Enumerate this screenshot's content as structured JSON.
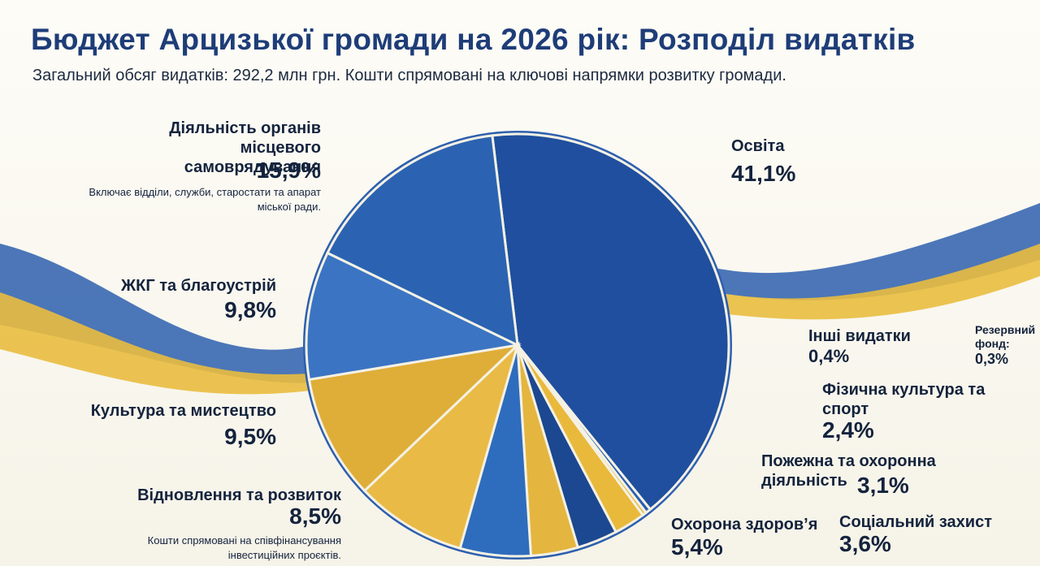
{
  "chart_data": {
    "type": "pie",
    "title": "Бюджет Арцизької громади на 2026 рік: Розподіл видатків",
    "subtitle": "Загальний обсяг видатків: 292,2 млн грн. Кошти спрямовані на ключові напрямки розвитку громади.",
    "categories": [
      "Освіта",
      "Інші видатки",
      "Резервний фонд:",
      "Фізична культура та спорт",
      "Пожежна та охоронна діяльність",
      "Соціальний захист",
      "Охорона здоров’я",
      "Відновлення та розвиток",
      "Культура та мистецтво",
      "ЖКГ та благоустрій",
      "Діяльність органів місцевого самоврядування"
    ],
    "values": [
      41.1,
      0.4,
      0.3,
      2.4,
      3.1,
      3.6,
      5.4,
      8.5,
      9.5,
      9.8,
      15.9
    ],
    "value_labels": [
      "41,1%",
      "0,4%",
      "0,3%",
      "2,4%",
      "3,1%",
      "3,6%",
      "5,4%",
      "8,5%",
      "9,5%",
      "9,8%",
      "15,9%"
    ],
    "colors": [
      "#1f4f9e",
      "#2a5fae",
      "#e6bd4a",
      "#e9b93c",
      "#1b4890",
      "#e4b63f",
      "#2e6cbd",
      "#e9ba45",
      "#dfae38",
      "#3b74c3",
      "#2b63b2"
    ],
    "annotations": [
      "Включає відділи, служби, старостати та апарат міської ради.",
      "Кошти спрямовані на співфінансування інвестиційних проєктів."
    ]
  }
}
